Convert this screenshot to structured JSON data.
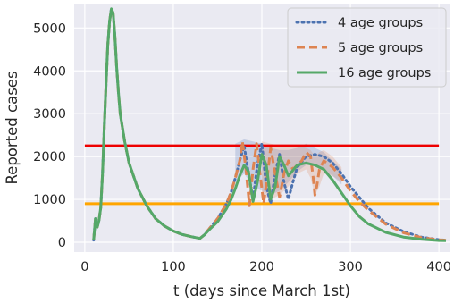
{
  "chart_data": {
    "type": "line",
    "xlabel": "t (days since March 1st)",
    "ylabel": "Reported cases",
    "xlim": [
      -12,
      412
    ],
    "ylim": [
      -230,
      5570
    ],
    "xticks": [
      0,
      100,
      200,
      300,
      400
    ],
    "yticks": [
      0,
      1000,
      2000,
      3000,
      4000,
      5000
    ],
    "grid": true,
    "legend_position": "top-right",
    "thresholds": [
      {
        "y": 2250,
        "x": [
          0,
          400
        ],
        "color": "#ee0000"
      },
      {
        "y": 900,
        "x": [
          0,
          400
        ],
        "color": "#ffa500"
      }
    ],
    "series": [
      {
        "name": "4 age groups",
        "color": "#4c72b0",
        "style": "dotted",
        "band": {
          "x": [
            170,
            180,
            190,
            200,
            210,
            220,
            230,
            240,
            250,
            260,
            270,
            280,
            290
          ],
          "lower": [
            1400,
            1600,
            1300,
            1200,
            1100,
            1200,
            1400,
            1650,
            1800,
            1800,
            1700,
            1550,
            1350
          ],
          "upper": [
            2300,
            2400,
            2350,
            2300,
            2200,
            2150,
            2150,
            2200,
            2300,
            2200,
            2100,
            1900,
            1700
          ]
        },
        "x": [
          10,
          12,
          14,
          16,
          18,
          20,
          22,
          24,
          26,
          28,
          30,
          32,
          34,
          36,
          38,
          40,
          45,
          50,
          60,
          70,
          80,
          90,
          100,
          110,
          120,
          130,
          135,
          140,
          150,
          160,
          165,
          170,
          175,
          180,
          185,
          190,
          195,
          200,
          205,
          210,
          215,
          220,
          225,
          230,
          235,
          240,
          250,
          260,
          270,
          280,
          290,
          300,
          310,
          320,
          340,
          360,
          380,
          400,
          408
        ],
        "y": [
          50,
          550,
          350,
          500,
          800,
          1600,
          2700,
          3700,
          4600,
          5150,
          5450,
          5350,
          4800,
          4100,
          3500,
          3000,
          2350,
          1850,
          1250,
          850,
          550,
          380,
          260,
          180,
          130,
          90,
          170,
          300,
          550,
          900,
          1150,
          1500,
          1900,
          2250,
          1600,
          1000,
          1800,
          2300,
          1300,
          900,
          1600,
          2050,
          1400,
          1000,
          1400,
          1750,
          2000,
          2050,
          2000,
          1850,
          1600,
          1300,
          1050,
          800,
          450,
          250,
          120,
          60,
          50
        ]
      },
      {
        "name": "5 age groups",
        "color": "#dd8452",
        "style": "dashed",
        "band": {
          "x": [
            200,
            210,
            220,
            230,
            240,
            250,
            255,
            260,
            265,
            270,
            280,
            290
          ],
          "lower": [
            1100,
            1000,
            1100,
            1300,
            1600,
            1700,
            1500,
            1100,
            1300,
            1600,
            1550,
            1400
          ],
          "upper": [
            2350,
            2300,
            2250,
            2250,
            2250,
            2200,
            2150,
            2000,
            2100,
            2150,
            2000,
            1750
          ]
        },
        "x": [
          10,
          12,
          14,
          16,
          18,
          20,
          22,
          24,
          26,
          28,
          30,
          32,
          34,
          36,
          38,
          40,
          45,
          50,
          60,
          70,
          80,
          90,
          100,
          110,
          120,
          130,
          135,
          140,
          150,
          160,
          165,
          170,
          175,
          178,
          182,
          186,
          190,
          194,
          198,
          202,
          206,
          210,
          215,
          220,
          225,
          230,
          235,
          240,
          245,
          250,
          255,
          258,
          260,
          262,
          265,
          270,
          280,
          290,
          300,
          310,
          320,
          340,
          360,
          380,
          400,
          408
        ],
        "y": [
          50,
          550,
          350,
          500,
          800,
          1600,
          2700,
          3700,
          4600,
          5150,
          5450,
          5350,
          4800,
          4100,
          3500,
          3000,
          2350,
          1850,
          1250,
          850,
          550,
          380,
          260,
          180,
          130,
          90,
          170,
          300,
          550,
          900,
          1150,
          1500,
          1900,
          2350,
          1700,
          850,
          1700,
          2300,
          1600,
          900,
          1500,
          2200,
          1600,
          1050,
          1600,
          1900,
          1700,
          1800,
          1900,
          2100,
          2000,
          1500,
          1100,
          1300,
          1700,
          1900,
          1750,
          1500,
          1200,
          950,
          750,
          420,
          220,
          110,
          55,
          45
        ]
      },
      {
        "name": "16 age groups",
        "color": "#55a868",
        "style": "solid",
        "x": [
          10,
          12,
          14,
          16,
          18,
          20,
          22,
          24,
          26,
          28,
          30,
          32,
          34,
          36,
          38,
          40,
          45,
          50,
          60,
          70,
          80,
          90,
          100,
          110,
          120,
          130,
          135,
          140,
          150,
          160,
          165,
          170,
          175,
          180,
          185,
          190,
          195,
          200,
          205,
          210,
          215,
          220,
          225,
          230,
          240,
          250,
          260,
          270,
          280,
          290,
          300,
          310,
          320,
          340,
          360,
          380,
          400,
          408
        ],
        "y": [
          50,
          550,
          350,
          500,
          800,
          1600,
          2700,
          3700,
          4600,
          5150,
          5450,
          5350,
          4800,
          4100,
          3500,
          3000,
          2350,
          1850,
          1250,
          850,
          550,
          380,
          260,
          180,
          130,
          90,
          170,
          280,
          480,
          780,
          980,
          1250,
          1550,
          1800,
          1650,
          950,
          1400,
          2050,
          1800,
          1000,
          1300,
          2000,
          1800,
          1550,
          1800,
          1850,
          1800,
          1700,
          1450,
          1150,
          850,
          600,
          430,
          230,
          120,
          70,
          40,
          35
        ]
      }
    ]
  }
}
